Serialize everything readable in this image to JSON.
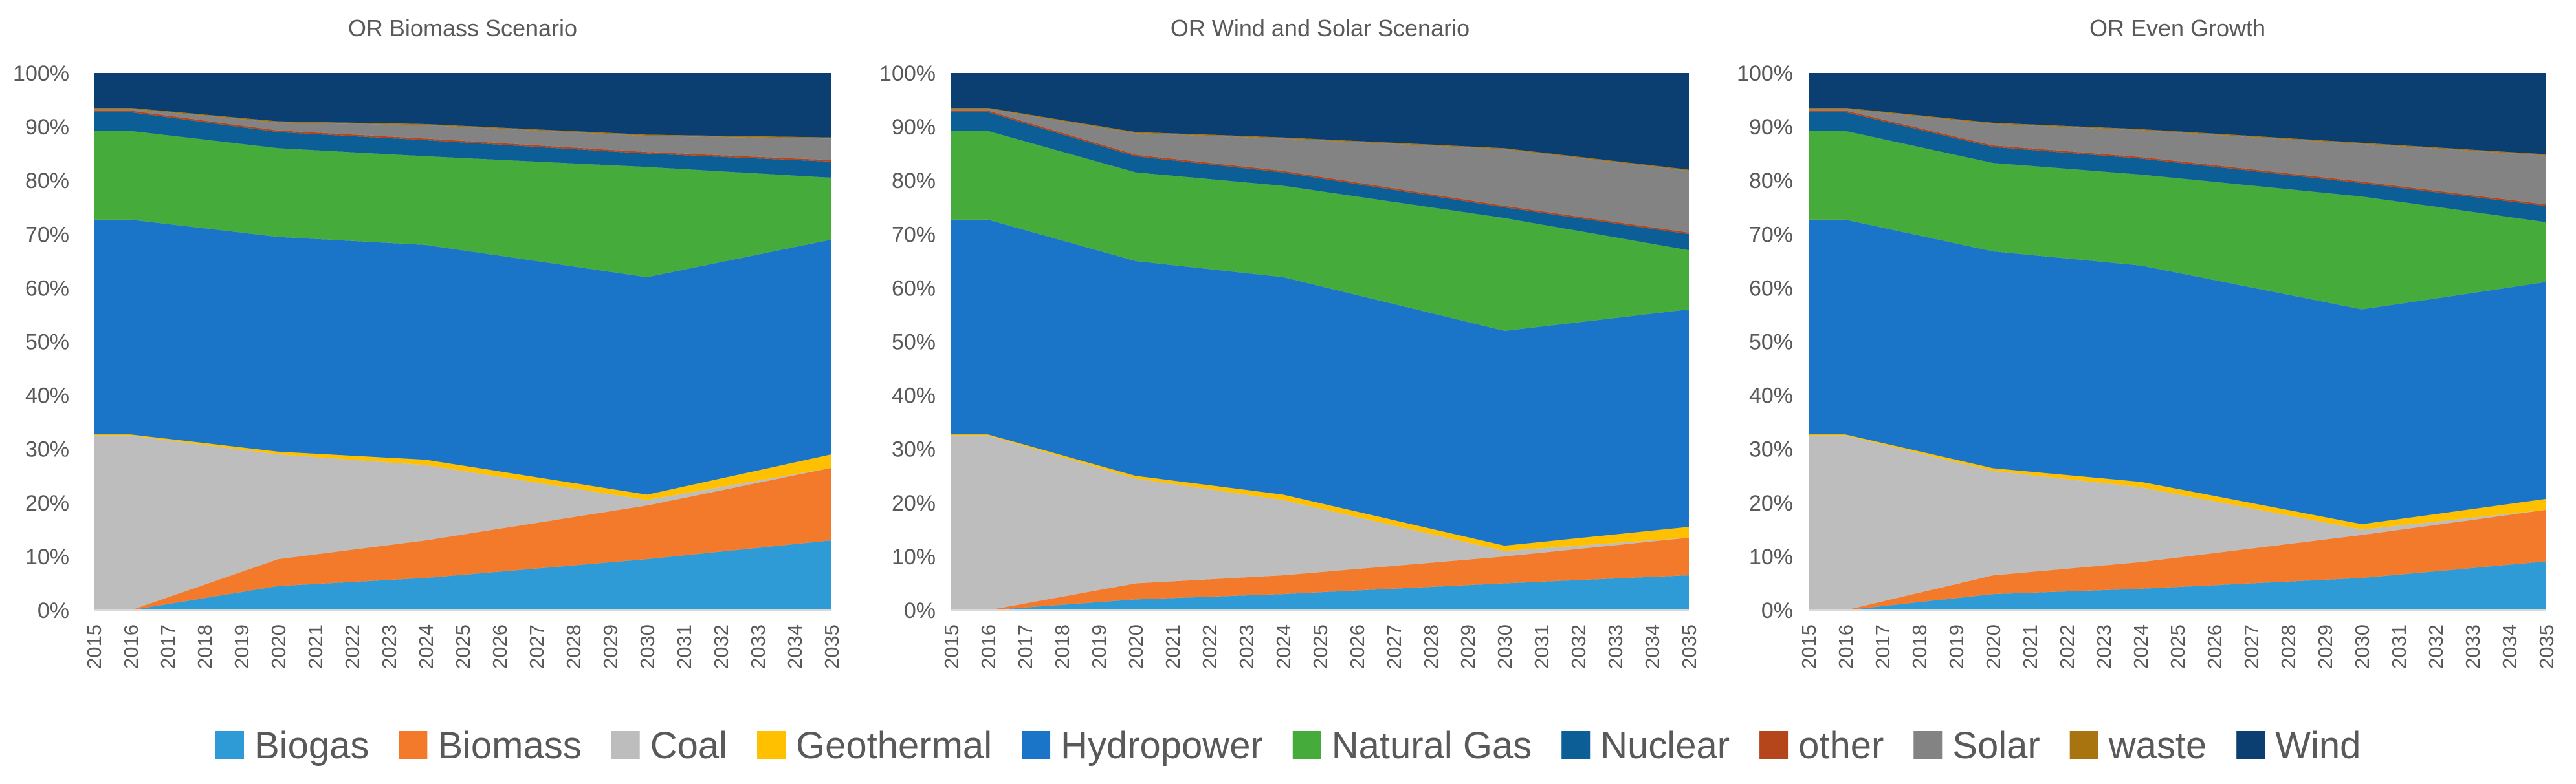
{
  "chart_data": {
    "type": "area",
    "stacked": true,
    "percent": true,
    "x": [
      "2015",
      "2016",
      "2017",
      "2018",
      "2019",
      "2020",
      "2021",
      "2022",
      "2023",
      "2024",
      "2025",
      "2026",
      "2027",
      "2028",
      "2029",
      "2030",
      "2031",
      "2032",
      "2033",
      "2034",
      "2035"
    ],
    "yticks": [
      "0%",
      "10%",
      "20%",
      "30%",
      "40%",
      "50%",
      "60%",
      "70%",
      "80%",
      "90%",
      "100%"
    ],
    "ylim": [
      0,
      100
    ],
    "series_order": [
      "Biogas",
      "Biomass",
      "Coal",
      "Geothermal",
      "Hydropower",
      "Natural Gas",
      "Nuclear",
      "other",
      "Solar",
      "waste",
      "Wind"
    ],
    "colors": {
      "Biogas": "#2e9ad6",
      "Biomass": "#f37a2b",
      "Coal": "#bdbdbd",
      "Geothermal": "#ffc000",
      "Hydropower": "#1a74c8",
      "Natural Gas": "#45ab3a",
      "Nuclear": "#0c5e96",
      "other": "#b5451b",
      "Solar": "#838383",
      "waste": "#a8740f",
      "Wind": "#0b3f72"
    },
    "legend": [
      "Biogas",
      "Biomass",
      "Coal",
      "Geothermal",
      "Hydropower",
      "Natural Gas",
      "Nuclear",
      "other",
      "Solar",
      "waste",
      "Wind"
    ],
    "charts": [
      {
        "title": "OR Biomass Scenario",
        "anchor_years": [
          2015,
          2016,
          2020,
          2024,
          2030,
          2035
        ],
        "series": {
          "Biogas": [
            0,
            0,
            4.5,
            6,
            9.5,
            13
          ],
          "Biomass": [
            0,
            0,
            5,
            7,
            10,
            13.5
          ],
          "Coal": [
            32.5,
            32.5,
            19.5,
            14,
            1,
            0
          ],
          "Geothermal": [
            0.2,
            0.2,
            0.5,
            1,
            1,
            2.5
          ],
          "Hydropower": [
            40,
            40,
            40,
            40,
            40.5,
            40
          ],
          "Natural Gas": [
            16.5,
            16.5,
            16.5,
            16.5,
            20.5,
            11.5
          ],
          "Nuclear": [
            3.5,
            3.5,
            3,
            3,
            2.5,
            3
          ],
          "other": [
            0.3,
            0.3,
            0.3,
            0.3,
            0.3,
            0.3
          ],
          "Solar": [
            0.3,
            0.3,
            1.5,
            2.5,
            3,
            4
          ],
          "waste": [
            0.2,
            0.2,
            0.2,
            0.2,
            0.2,
            0.2
          ],
          "Wind": [
            6.5,
            6.5,
            9,
            9.5,
            11.5,
            12
          ]
        }
      },
      {
        "title": "OR Wind and Solar Scenario",
        "anchor_years": [
          2015,
          2016,
          2020,
          2024,
          2030,
          2035
        ],
        "series": {
          "Biogas": [
            0,
            0,
            2,
            3,
            5,
            6.5
          ],
          "Biomass": [
            0,
            0,
            3,
            3.5,
            5,
            7
          ],
          "Coal": [
            32.5,
            32.5,
            19.5,
            14,
            1,
            0
          ],
          "Geothermal": [
            0.2,
            0.2,
            0.5,
            1,
            1,
            2
          ],
          "Hydropower": [
            40,
            40,
            40,
            40.5,
            40,
            40.5
          ],
          "Natural Gas": [
            16.5,
            16.5,
            16.5,
            17,
            21,
            11
          ],
          "Nuclear": [
            3.5,
            3.5,
            3,
            2.5,
            2,
            3
          ],
          "other": [
            0.3,
            0.3,
            0.3,
            0.3,
            0.3,
            0.3
          ],
          "Solar": [
            0.3,
            0.3,
            4,
            6,
            10.5,
            11.5
          ],
          "waste": [
            0.2,
            0.2,
            0.2,
            0.2,
            0.2,
            0.2
          ],
          "Wind": [
            6.5,
            6.5,
            11,
            12,
            14,
            18
          ]
        }
      },
      {
        "title": "OR Even Growth",
        "anchor_years": [
          2015,
          2016,
          2020,
          2024,
          2030,
          2035
        ],
        "series": {
          "Biogas": [
            0,
            0,
            3,
            4,
            6,
            9
          ],
          "Biomass": [
            0,
            0,
            3.5,
            5,
            8,
            9.5
          ],
          "Coal": [
            32.5,
            32.5,
            19.5,
            14,
            1,
            0
          ],
          "Geothermal": [
            0.2,
            0.2,
            0.5,
            1,
            1,
            2
          ],
          "Hydropower": [
            40,
            40,
            40.5,
            40.5,
            40,
            40
          ],
          "Natural Gas": [
            16.5,
            16.5,
            16.5,
            17,
            21,
            11
          ],
          "Nuclear": [
            3.5,
            3.5,
            3,
            3,
            2.5,
            3
          ],
          "other": [
            0.3,
            0.3,
            0.3,
            0.3,
            0.3,
            0.3
          ],
          "Solar": [
            0.3,
            0.3,
            4,
            5,
            7,
            9
          ],
          "waste": [
            0.2,
            0.2,
            0.2,
            0.2,
            0.2,
            0.2
          ],
          "Wind": [
            6.5,
            6.5,
            9.3,
            10.5,
            13,
            15
          ]
        }
      }
    ]
  }
}
